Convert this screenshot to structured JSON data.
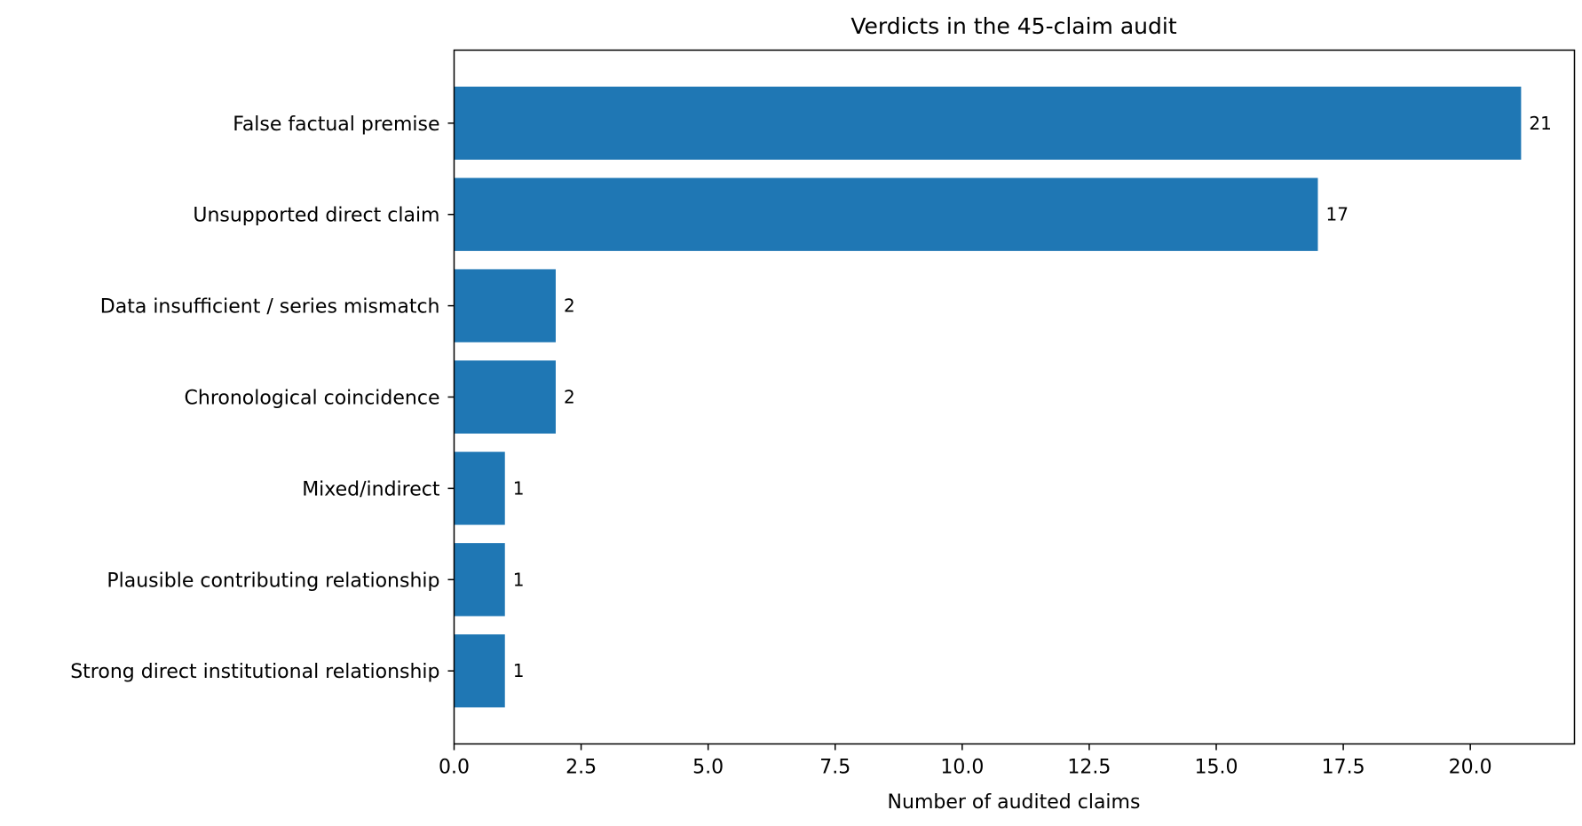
{
  "chart_data": {
    "type": "bar",
    "orientation": "horizontal",
    "title": "Verdicts in the 45-claim audit",
    "xlabel": "Number of audited claims",
    "ylabel": "",
    "categories": [
      "False factual premise",
      "Unsupported direct claim",
      "Data insufficient / series mismatch",
      "Chronological coincidence",
      "Mixed/indirect",
      "Plausible contributing relationship",
      "Strong direct institutional relationship"
    ],
    "values": [
      21,
      17,
      2,
      2,
      1,
      1,
      1
    ],
    "value_labels": [
      "21",
      "17",
      "2",
      "2",
      "1",
      "1",
      "1"
    ],
    "xlim": [
      0,
      22.05
    ],
    "xticks": [
      0.0,
      2.5,
      5.0,
      7.5,
      10.0,
      12.5,
      15.0,
      17.5,
      20.0
    ],
    "xtick_labels": [
      "0.0",
      "2.5",
      "5.0",
      "7.5",
      "10.0",
      "12.5",
      "15.0",
      "17.5",
      "20.0"
    ],
    "bar_color": "#1f77b4",
    "grid": false,
    "legend": "none"
  }
}
